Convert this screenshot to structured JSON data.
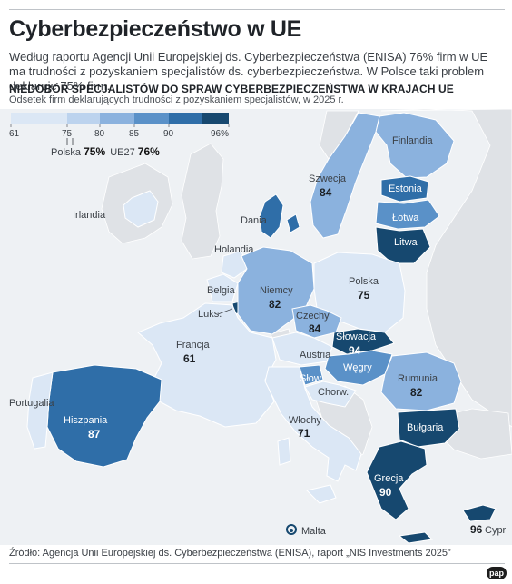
{
  "title": "Cyberbezpieczeństwo w UE",
  "lede": "Według raportu Agencji Unii Europejskiej ds. Cyberbezpieczeństwa (ENISA) 76% firm w UE ma trudności z pozyskaniem specjalistów ds. cyberbezpieczeństwa. W Polsce taki problem deklaruje 75% firm.",
  "section_title": "NIEDOBÓR SPECJALISTÓW DO SPRAW CYBERBEZPIECZEŃSTWA W KRAJACH UE",
  "subtitle": "Odsetek firm deklarujących trudności z pozyskaniem specjalistów, w 2025 r.",
  "legend": {
    "ticks": [
      "61",
      "75",
      "80",
      "85",
      "90",
      "96%"
    ],
    "colors": [
      "#dbe7f5",
      "#bcd3ee",
      "#8bb2de",
      "#5a91c8",
      "#2f6ea8",
      "#16486f"
    ],
    "polska_label": "Polska",
    "polska_value": "75%",
    "ue_label": "UE27",
    "ue_value": "76%"
  },
  "countries_with_values": [
    {
      "name": "Szwecja",
      "value": "84"
    },
    {
      "name": "Niemcy",
      "value": "82"
    },
    {
      "name": "Polska",
      "value": "75"
    },
    {
      "name": "Czechy",
      "value": "84"
    },
    {
      "name": "Słowacja",
      "value": "94"
    },
    {
      "name": "Francja",
      "value": "61"
    },
    {
      "name": "Rumunia",
      "value": "82"
    },
    {
      "name": "Hiszpania",
      "value": "87"
    },
    {
      "name": "Włochy",
      "value": "71"
    },
    {
      "name": "Grecja",
      "value": "90"
    },
    {
      "name": "Cypr",
      "value": "96"
    }
  ],
  "country_labels": {
    "finlandia": "Finlandia",
    "estonia": "Estonia",
    "lotwa": "Łotwa",
    "litwa": "Litwa",
    "irlandia": "Irlandia",
    "dania": "Dania",
    "holandia": "Holandia",
    "belgia": "Belgia",
    "luks": "Luks.",
    "austria": "Austria",
    "wegry": "Węgry",
    "slow": "Słow.",
    "chorw": "Chorw.",
    "portugalia": "Portugalia",
    "bulgaria": "Bułgaria",
    "malta": "Malta"
  },
  "source": "Źródło: Agencja Unii Europejskiej ds. Cyberbezpieczeństwa (ENISA), raport „NIS Investments 2025”",
  "logo": "pap"
}
